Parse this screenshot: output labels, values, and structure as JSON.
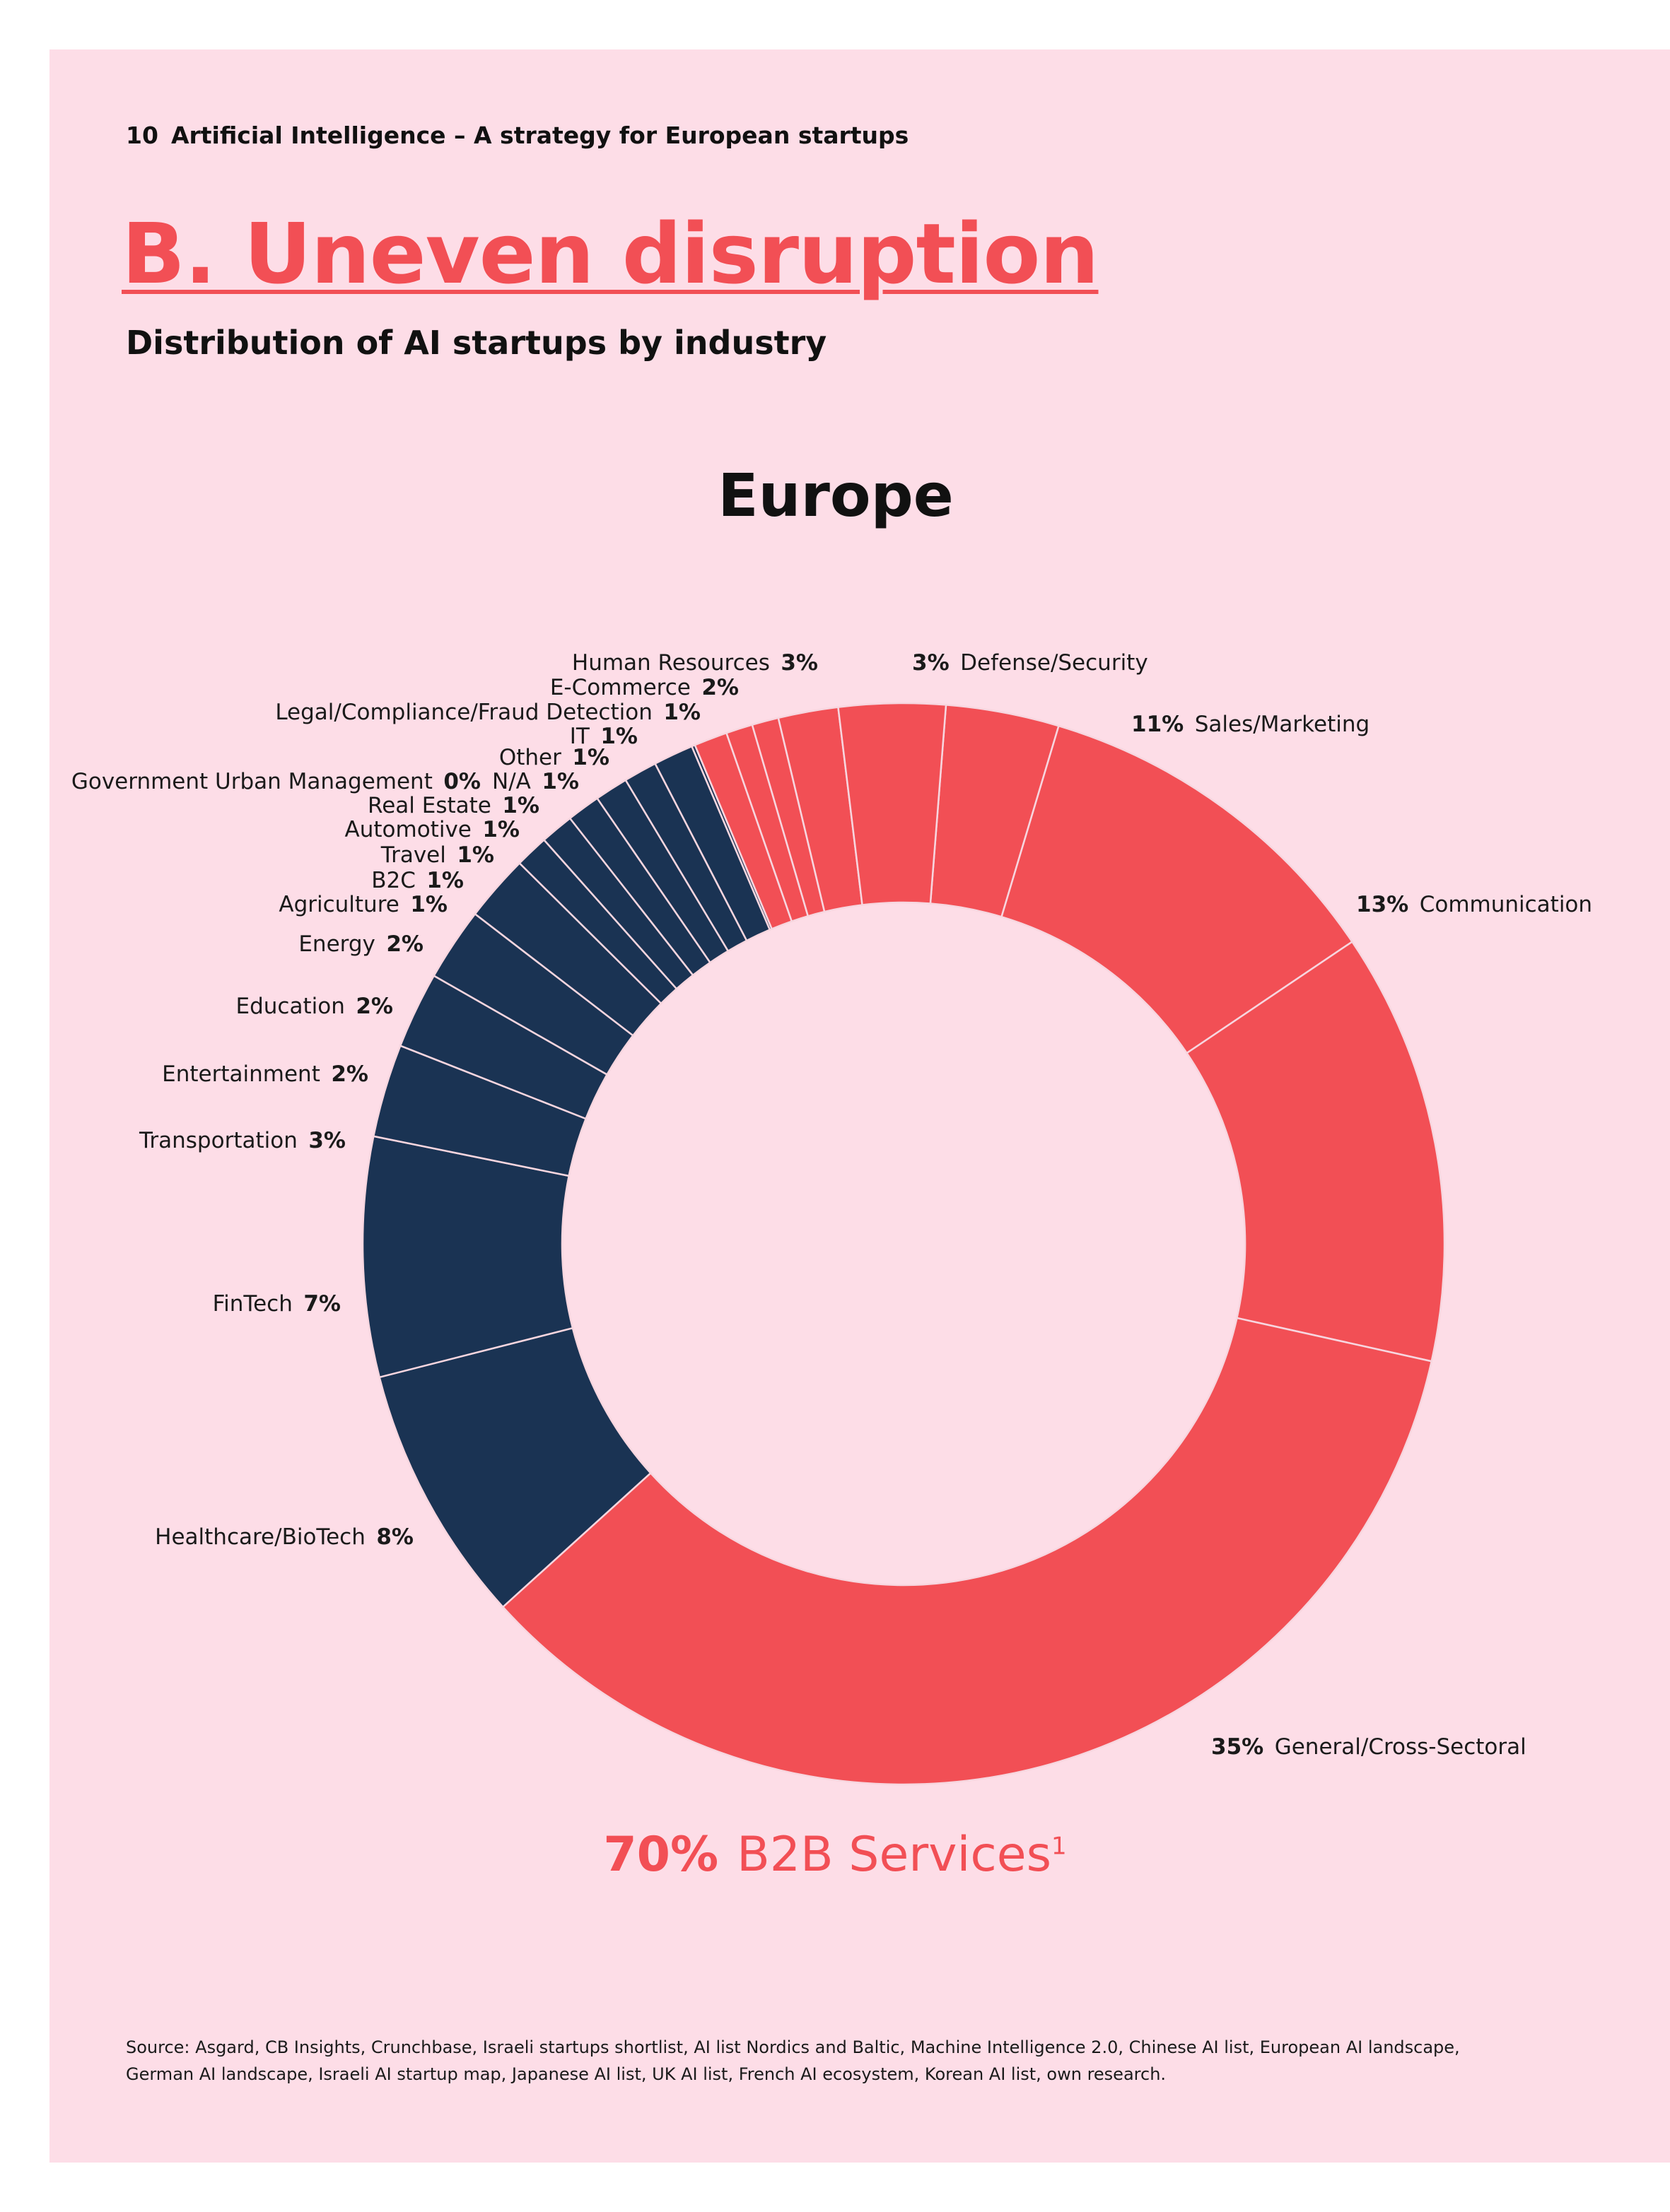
{
  "header": {
    "page_number": "10",
    "text": "Artificial Intelligence – A strategy for European startups"
  },
  "title": "B.  Uneven disruption",
  "subtitle": "Distribution of AI startups by industry",
  "summary": {
    "value": "70%",
    "label": "B2B Services",
    "footnote": "1"
  },
  "source": "Source: Asgard, CB Insights, Crunchbase, Israeli startups shortlist, AI list Nordics and Baltic, Machine Intelligence 2.0, Chinese AI list, European AI landscape, German AI landscape, Israeli AI startup map, Japanese AI list, UK AI list, French AI ecosystem, Korean AI list, own research.",
  "colors": {
    "b2b": "#f24f55",
    "other": "#1a3353",
    "page": "#fddde7",
    "accent": "#f24f55"
  },
  "chart_data": {
    "type": "pie",
    "style": "donut",
    "title": "Europe",
    "unit": "%",
    "slices": [
      {
        "label": "Defense/Security",
        "pct_label": "3%",
        "value": 3.4,
        "group": "b2b"
      },
      {
        "label": "Sales/Marketing",
        "pct_label": "11%",
        "value": 11,
        "group": "b2b"
      },
      {
        "label": "Communication",
        "pct_label": "13%",
        "value": 13,
        "group": "b2b"
      },
      {
        "label": "General/Cross-Sectoral",
        "pct_label": "35%",
        "value": 35,
        "group": "b2b"
      },
      {
        "label": "Healthcare/BioTech",
        "pct_label": "8%",
        "value": 7.8,
        "group": "other"
      },
      {
        "label": "FinTech",
        "pct_label": "7%",
        "value": 7.2,
        "group": "other"
      },
      {
        "label": "Transportation",
        "pct_label": "3%",
        "value": 2.8,
        "group": "other"
      },
      {
        "label": "Entertainment",
        "pct_label": "2%",
        "value": 2.3,
        "group": "other"
      },
      {
        "label": "Education",
        "pct_label": "2%",
        "value": 2.2,
        "group": "other"
      },
      {
        "label": "Energy",
        "pct_label": "2%",
        "value": 2.0,
        "group": "other"
      },
      {
        "label": "Agriculture",
        "pct_label": "1%",
        "value": 1.0,
        "group": "other"
      },
      {
        "label": "B2C",
        "pct_label": "1%",
        "value": 1.0,
        "group": "other"
      },
      {
        "label": "Travel",
        "pct_label": "1%",
        "value": 1.0,
        "group": "other"
      },
      {
        "label": "Automotive",
        "pct_label": "1%",
        "value": 1.0,
        "group": "other"
      },
      {
        "label": "Real Estate",
        "pct_label": "1%",
        "value": 1.0,
        "group": "other"
      },
      {
        "label": "N/A",
        "pct_label": "1%",
        "value": 1.2,
        "group": "other"
      },
      {
        "label": "Government Urban Management",
        "pct_label": "0%",
        "value": 0.1,
        "group": "other"
      },
      {
        "label": "Other",
        "pct_label": "1%",
        "value": 1.0,
        "group": "b2b"
      },
      {
        "label": "IT",
        "pct_label": "1%",
        "value": 0.8,
        "group": "b2b"
      },
      {
        "label": "Legal/Compliance/Fraud Detection",
        "pct_label": "1%",
        "value": 0.8,
        "group": "b2b"
      },
      {
        "label": "E-Commerce",
        "pct_label": "2%",
        "value": 1.8,
        "group": "b2b"
      },
      {
        "label": "Human Resources",
        "pct_label": "3%",
        "value": 3.2,
        "group": "b2b"
      }
    ]
  }
}
